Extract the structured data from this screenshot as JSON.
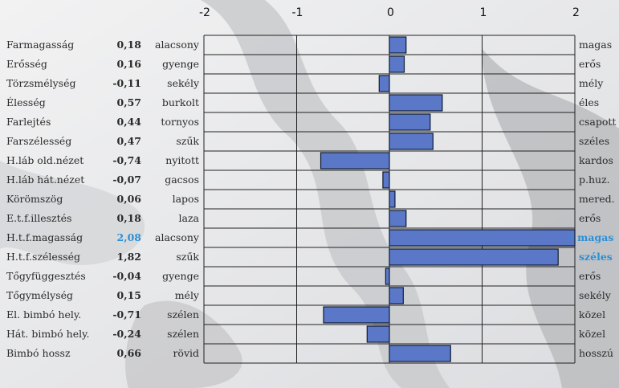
{
  "chart_data": {
    "type": "bar",
    "orientation": "horizontal",
    "xlim": [
      -2,
      2
    ],
    "x_ticks": [
      "-2",
      "-1",
      "0",
      "1",
      "2"
    ],
    "bar_color": "#5b78c8",
    "highlight_color": "#2a8fd6",
    "grid": true,
    "rows": [
      {
        "trait": "Farmagasság",
        "value": 0.18,
        "label": "0,18",
        "low": "alacsony",
        "high": "magas"
      },
      {
        "trait": "Erősség",
        "value": 0.16,
        "label": "0,16",
        "low": "gyenge",
        "high": "erős"
      },
      {
        "trait": "Törzsmélység",
        "value": -0.11,
        "label": "-0,11",
        "low": "sekély",
        "high": "mély"
      },
      {
        "trait": "Élesség",
        "value": 0.57,
        "label": "0,57",
        "low": "burkolt",
        "high": "éles"
      },
      {
        "trait": "Farlejtés",
        "value": 0.44,
        "label": "0,44",
        "low": "tornyos",
        "high": "csapott"
      },
      {
        "trait": "Farszélesség",
        "value": 0.47,
        "label": "0,47",
        "low": "szűk",
        "high": "széles"
      },
      {
        "trait": "H.láb old.nézet",
        "value": -0.74,
        "label": "-0,74",
        "low": "nyitott",
        "high": "kardos"
      },
      {
        "trait": "H.láb hát.nézet",
        "value": -0.07,
        "label": "-0,07",
        "low": "gacsos",
        "high": "p.huz."
      },
      {
        "trait": "Körömszög",
        "value": 0.06,
        "label": "0,06",
        "low": "lapos",
        "high": "mered."
      },
      {
        "trait": "E.t.f.illesztés",
        "value": 0.18,
        "label": "0,18",
        "low": "laza",
        "high": "erős"
      },
      {
        "trait": "H.t.f.magasság",
        "value": 2.08,
        "label": "2,08",
        "low": "alacsony",
        "high": "» magas",
        "highlight": true,
        "overflow": true
      },
      {
        "trait": "H.t.f.szélesség",
        "value": 1.82,
        "label": "1,82",
        "low": "szűk",
        "high": "széles",
        "highlight_high": true
      },
      {
        "trait": "Tőgyfüggesztés",
        "value": -0.04,
        "label": "-0,04",
        "low": "gyenge",
        "high": "erős"
      },
      {
        "trait": "Tőgymélység",
        "value": 0.15,
        "label": "0,15",
        "low": "mély",
        "high": "sekély"
      },
      {
        "trait": "El. bimbó hely.",
        "value": -0.71,
        "label": "-0,71",
        "low": "szélen",
        "high": "közel"
      },
      {
        "trait": "Hát. bimbó hely.",
        "value": -0.24,
        "label": "-0,24",
        "low": "szélen",
        "high": "közel"
      },
      {
        "trait": "Bimbó hossz",
        "value": 0.66,
        "label": "0,66",
        "low": "rövid",
        "high": "hosszú"
      }
    ]
  }
}
